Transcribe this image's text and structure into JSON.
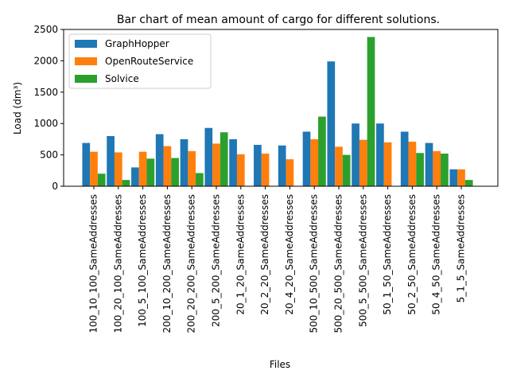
{
  "chart_data": {
    "type": "bar",
    "title": "Bar chart of mean amount of cargo for different solutions.",
    "xlabel": "Files",
    "ylabel": "Load (dm³)",
    "ylim": [
      0,
      2500
    ],
    "yticks": [
      0,
      500,
      1000,
      1500,
      2000,
      2500
    ],
    "grid": false,
    "legend_position": "upper-left",
    "categories": [
      "100_10_100_SameAddresses",
      "100_20_100_SameAddresses",
      "100_5_100_SameAddresses",
      "200_10_200_SameAddresses",
      "200_20_200_SameAddresses",
      "200_5_200_SameAddresses",
      "20_1_20_SameAddresses",
      "20_2_20_SameAddresses",
      "20_4_20_SameAddresses",
      "500_10_500_SameAddresses",
      "500_20_500_SameAddresses",
      "500_5_500_SameAddresses",
      "50_1_50_SameAddresses",
      "50_2_50_SameAddresses",
      "50_4_50_SameAddresses",
      "5_1_5_SameAddresses"
    ],
    "series": [
      {
        "name": "GraphHopper",
        "color": "#1f77b4",
        "values": [
          690,
          800,
          300,
          830,
          750,
          930,
          750,
          660,
          650,
          870,
          1990,
          1000,
          1000,
          870,
          690,
          270
        ]
      },
      {
        "name": "OpenRouteService",
        "color": "#ff7f0e",
        "values": [
          550,
          540,
          550,
          640,
          560,
          680,
          510,
          520,
          430,
          750,
          630,
          740,
          700,
          710,
          560,
          270
        ]
      },
      {
        "name": "Solvice",
        "color": "#2ca02c",
        "values": [
          200,
          100,
          440,
          450,
          210,
          860,
          0,
          0,
          0,
          1110,
          500,
          2380,
          0,
          530,
          520,
          100
        ]
      }
    ]
  }
}
